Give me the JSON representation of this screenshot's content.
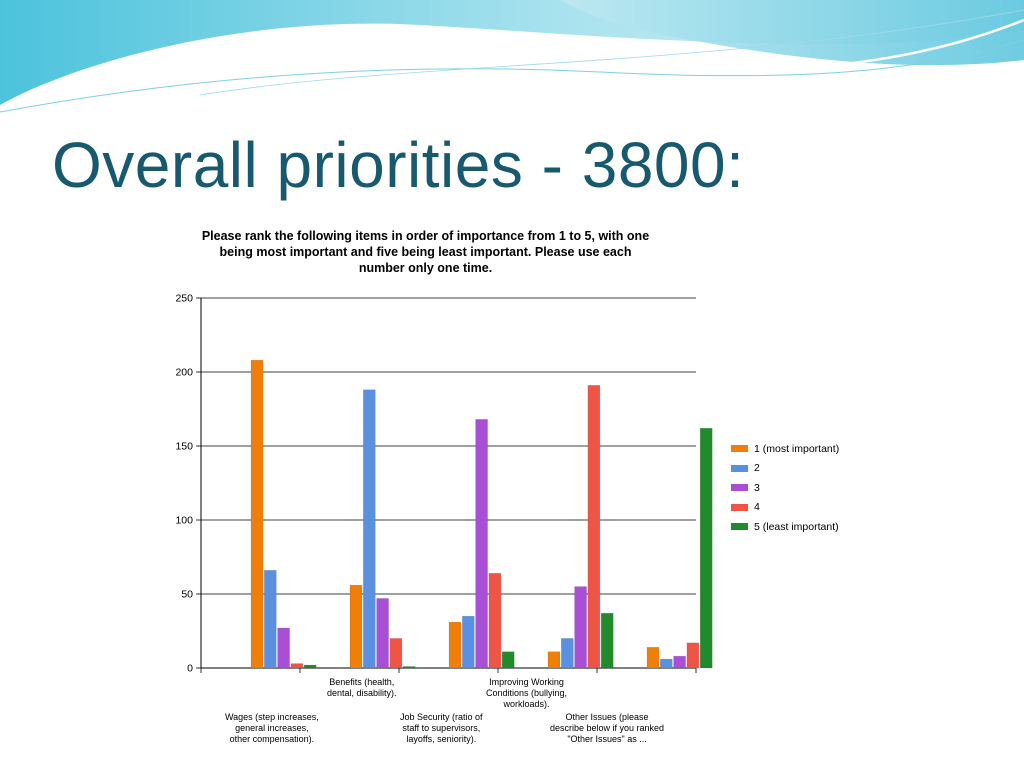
{
  "slide": {
    "title": "Overall priorities - 3800:"
  },
  "chart_data": {
    "type": "bar",
    "title": "Please rank the following items in order of importance from 1 to 5, with one being most important and five being least important.  Please use each number only one time.",
    "title_lines": [
      "Please rank the following items in order of importance from 1 to 5, with one",
      "being most important and five being least important.  Please use each",
      "number only one time."
    ],
    "categories": [
      "Wages (step increases, general increases, other compensation).",
      "Benefits (health, dental, disability).",
      "Job Security (ratio of staff to supervisors, layoffs, seniority).",
      "Improving Working Conditions (bullying, workloads).",
      "Other Issues (please describe below if you ranked \"Other Issues\" as ..."
    ],
    "category_label_lines": [
      [
        "Wages (step increases,",
        "general increases,",
        "other compensation)."
      ],
      [
        "Benefits (health,",
        "dental, disability)."
      ],
      [
        "Job Security (ratio of",
        "staff to supervisors,",
        "layoffs, seniority)."
      ],
      [
        "Improving Working",
        "Conditions (bullying,",
        "workloads)."
      ],
      [
        "Other Issues (please",
        "describe below if you ranked",
        "\"Other Issues\" as ..."
      ]
    ],
    "series": [
      {
        "name": "1 (most important)",
        "color": "#f07f0a",
        "values": [
          208,
          56,
          31,
          11,
          14
        ]
      },
      {
        "name": "2",
        "color": "#5b8fe0",
        "values": [
          66,
          188,
          35,
          20,
          6
        ]
      },
      {
        "name": "3",
        "color": "#a84fd6",
        "values": [
          27,
          47,
          168,
          55,
          8
        ]
      },
      {
        "name": "4",
        "color": "#ee5545",
        "values": [
          3,
          20,
          64,
          191,
          17
        ]
      },
      {
        "name": "5 (least important)",
        "color": "#218a2a",
        "values": [
          2,
          1,
          11,
          37,
          162
        ]
      }
    ],
    "ylim": [
      0,
      250
    ],
    "yticks": [
      0,
      50,
      100,
      150,
      200,
      250
    ],
    "xlabel": "",
    "ylabel": "",
    "grid": true,
    "legend_position": "right"
  }
}
